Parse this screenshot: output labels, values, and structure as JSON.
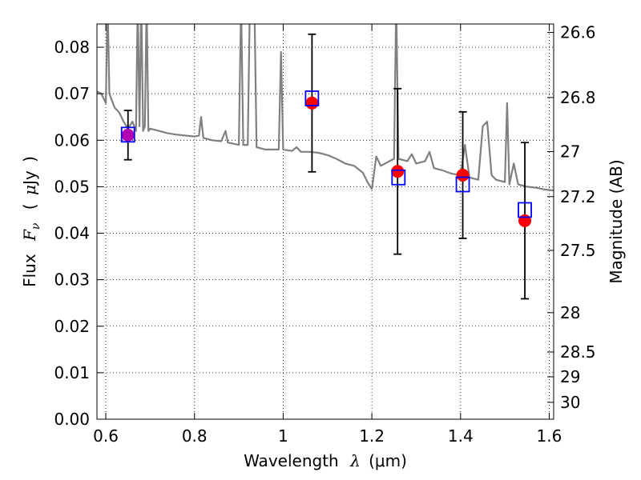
{
  "chart_data": {
    "type": "scatter",
    "xlabel": {
      "prefix": "Wavelength",
      "symbol": "λ",
      "unit": "(μm)"
    },
    "ylabel": {
      "prefix": "Flux",
      "symbol": "F",
      "subscript": "ν",
      "unit_open": "(",
      "unit_mu": "μ",
      "unit_rest": "Jy",
      "unit_close": ")"
    },
    "y2label": "Magnitude (AB)",
    "xlim": [
      0.58,
      1.61
    ],
    "ylim": [
      0.0,
      0.085
    ],
    "grid": true,
    "x_ticks": [
      {
        "value": 0.6,
        "label": "0.6"
      },
      {
        "value": 0.8,
        "label": "0.8"
      },
      {
        "value": 1.0,
        "label": "1"
      },
      {
        "value": 1.2,
        "label": "1.2"
      },
      {
        "value": 1.4,
        "label": "1.4"
      },
      {
        "value": 1.6,
        "label": "1.6"
      }
    ],
    "y_ticks": [
      {
        "value": 0.0,
        "label": "0.00"
      },
      {
        "value": 0.01,
        "label": "0.01"
      },
      {
        "value": 0.02,
        "label": "0.02"
      },
      {
        "value": 0.03,
        "label": "0.03"
      },
      {
        "value": 0.04,
        "label": "0.04"
      },
      {
        "value": 0.05,
        "label": "0.05"
      },
      {
        "value": 0.06,
        "label": "0.06"
      },
      {
        "value": 0.07,
        "label": "0.07"
      },
      {
        "value": 0.08,
        "label": "0.08"
      }
    ],
    "y2_ticks": [
      {
        "mag": 26.6,
        "label": "26.6"
      },
      {
        "mag": 26.8,
        "label": "26.8"
      },
      {
        "mag": 27.0,
        "label": "27"
      },
      {
        "mag": 27.2,
        "label": "27.2"
      },
      {
        "mag": 27.5,
        "label": "27.5"
      },
      {
        "mag": 28.0,
        "label": "28"
      },
      {
        "mag": 28.5,
        "label": "28.5"
      },
      {
        "mag": 29.0,
        "label": "29"
      },
      {
        "mag": 30.0,
        "label": "30"
      }
    ],
    "series": [
      {
        "kind": "model_spectrum",
        "color": "#808080",
        "points": [
          [
            0.58,
            0.0705
          ],
          [
            0.59,
            0.07
          ],
          [
            0.6,
            0.068
          ],
          [
            0.604,
            0.09
          ],
          [
            0.608,
            0.07
          ],
          [
            0.612,
            0.069
          ],
          [
            0.62,
            0.067
          ],
          [
            0.63,
            0.066
          ],
          [
            0.64,
            0.064
          ],
          [
            0.65,
            0.0625
          ],
          [
            0.66,
            0.064
          ],
          [
            0.668,
            0.062
          ],
          [
            0.672,
            0.09
          ],
          [
            0.676,
            0.063
          ],
          [
            0.68,
            0.09
          ],
          [
            0.684,
            0.062
          ],
          [
            0.688,
            0.063
          ],
          [
            0.692,
            0.09
          ],
          [
            0.696,
            0.062
          ],
          [
            0.7,
            0.0625
          ],
          [
            0.72,
            0.062
          ],
          [
            0.74,
            0.0615
          ],
          [
            0.76,
            0.0612
          ],
          [
            0.78,
            0.061
          ],
          [
            0.8,
            0.0608
          ],
          [
            0.81,
            0.061
          ],
          [
            0.815,
            0.065
          ],
          [
            0.82,
            0.0605
          ],
          [
            0.84,
            0.06
          ],
          [
            0.86,
            0.0598
          ],
          [
            0.87,
            0.062
          ],
          [
            0.875,
            0.0595
          ],
          [
            0.9,
            0.059
          ],
          [
            0.905,
            0.09
          ],
          [
            0.91,
            0.059
          ],
          [
            0.92,
            0.059
          ],
          [
            0.925,
            0.09
          ],
          [
            0.935,
            0.09
          ],
          [
            0.94,
            0.0585
          ],
          [
            0.96,
            0.058
          ],
          [
            0.98,
            0.058
          ],
          [
            0.99,
            0.058
          ],
          [
            0.995,
            0.079
          ],
          [
            1.0,
            0.058
          ],
          [
            1.02,
            0.0577
          ],
          [
            1.03,
            0.0585
          ],
          [
            1.04,
            0.0575
          ],
          [
            1.06,
            0.0575
          ],
          [
            1.08,
            0.0573
          ],
          [
            1.1,
            0.0568
          ],
          [
            1.12,
            0.056
          ],
          [
            1.14,
            0.055
          ],
          [
            1.16,
            0.0545
          ],
          [
            1.18,
            0.053
          ],
          [
            1.19,
            0.051
          ],
          [
            1.2,
            0.0495
          ],
          [
            1.21,
            0.0565
          ],
          [
            1.22,
            0.0545
          ],
          [
            1.24,
            0.0555
          ],
          [
            1.25,
            0.056
          ],
          [
            1.255,
            0.09
          ],
          [
            1.26,
            0.056
          ],
          [
            1.28,
            0.0555
          ],
          [
            1.29,
            0.057
          ],
          [
            1.3,
            0.055
          ],
          [
            1.32,
            0.0555
          ],
          [
            1.33,
            0.0575
          ],
          [
            1.34,
            0.054
          ],
          [
            1.36,
            0.0535
          ],
          [
            1.38,
            0.0528
          ],
          [
            1.4,
            0.0525
          ],
          [
            1.41,
            0.059
          ],
          [
            1.42,
            0.052
          ],
          [
            1.44,
            0.0515
          ],
          [
            1.45,
            0.063
          ],
          [
            1.46,
            0.064
          ],
          [
            1.47,
            0.0525
          ],
          [
            1.48,
            0.0515
          ],
          [
            1.5,
            0.051
          ],
          [
            1.505,
            0.068
          ],
          [
            1.51,
            0.0505
          ],
          [
            1.52,
            0.055
          ],
          [
            1.53,
            0.0505
          ],
          [
            1.55,
            0.05
          ],
          [
            1.57,
            0.0498
          ],
          [
            1.59,
            0.0494
          ],
          [
            1.61,
            0.0492
          ]
        ]
      },
      {
        "kind": "model_photometry",
        "marker": "open-square",
        "color": "#0000ff",
        "points": [
          [
            0.65,
            0.0612
          ],
          [
            1.065,
            0.069
          ],
          [
            1.26,
            0.052
          ],
          [
            1.405,
            0.0505
          ],
          [
            1.545,
            0.045
          ]
        ]
      },
      {
        "kind": "observed_photometry",
        "marker": "filled-circle",
        "color": "#ff0000",
        "errcolor": "#000000",
        "points": [
          {
            "x": 0.65,
            "y": 0.0611,
            "err": 0.0053,
            "color": "#b000b0"
          },
          {
            "x": 1.065,
            "y": 0.068,
            "err": 0.0148
          },
          {
            "x": 1.258,
            "y": 0.0533,
            "err": 0.0178
          },
          {
            "x": 1.405,
            "y": 0.0525,
            "err": 0.0136
          },
          {
            "x": 1.545,
            "y": 0.0427,
            "err": 0.0168
          }
        ]
      }
    ]
  }
}
